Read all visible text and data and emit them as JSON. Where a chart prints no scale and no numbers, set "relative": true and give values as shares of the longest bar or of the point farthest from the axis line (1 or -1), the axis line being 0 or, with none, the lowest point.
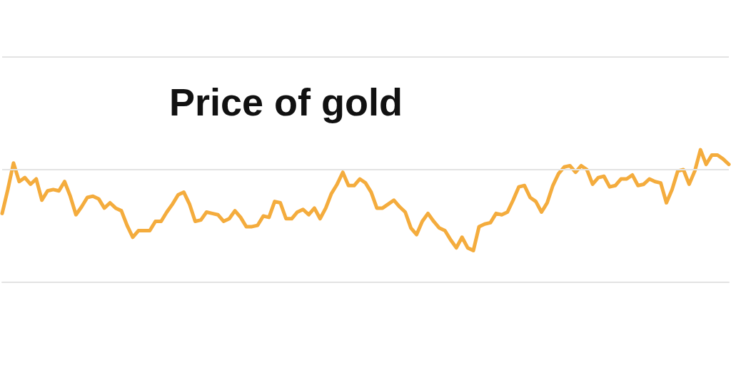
{
  "chart_data": {
    "type": "line",
    "title": "Price of gold",
    "relative": true,
    "color": "#f4ac3d",
    "ref_lines": [
      {
        "axis": "y",
        "value": 1.7,
        "color": "#e3e3e3"
      },
      {
        "axis": "y",
        "value": 0.85,
        "color": "#e3e3e3"
      }
    ],
    "categories": [
      null,
      null,
      null,
      null,
      null,
      null,
      null,
      null,
      null,
      null,
      null,
      null,
      null,
      null,
      null,
      null,
      null,
      null,
      null,
      null,
      null,
      null,
      null,
      null,
      null,
      null,
      null,
      null,
      null,
      null,
      null,
      null,
      null,
      null,
      null,
      null,
      null,
      null,
      null,
      null,
      null,
      null,
      null,
      null,
      null,
      null,
      null,
      null,
      null,
      null,
      null,
      null,
      null,
      null,
      null,
      null,
      null,
      null,
      null,
      null,
      null,
      null,
      null,
      null,
      null,
      null,
      null,
      null,
      null,
      null,
      null,
      null,
      null,
      null,
      null,
      null,
      null,
      null,
      null,
      null,
      null,
      null,
      null,
      null,
      null,
      null,
      null,
      null,
      null,
      null,
      null,
      null,
      null,
      null,
      null,
      null,
      null,
      null,
      null,
      null,
      null,
      null,
      null,
      null,
      null,
      null,
      null,
      null,
      null,
      null,
      null,
      null,
      null,
      null,
      null,
      null,
      null,
      null,
      null,
      null,
      null,
      null,
      null,
      null,
      null,
      null,
      null,
      null,
      null
    ],
    "values": [
      0.52,
      0.7,
      0.9,
      0.76,
      0.79,
      0.74,
      0.78,
      0.62,
      0.69,
      0.7,
      0.69,
      0.76,
      0.65,
      0.51,
      0.57,
      0.64,
      0.65,
      0.63,
      0.56,
      0.6,
      0.56,
      0.54,
      0.43,
      0.34,
      0.39,
      0.39,
      0.39,
      0.46,
      0.46,
      0.53,
      0.59,
      0.66,
      0.68,
      0.59,
      0.46,
      0.47,
      0.53,
      0.52,
      0.51,
      0.46,
      0.48,
      0.54,
      0.49,
      0.42,
      0.42,
      0.43,
      0.5,
      0.49,
      0.61,
      0.6,
      0.48,
      0.48,
      0.53,
      0.55,
      0.51,
      0.56,
      0.48,
      0.56,
      0.67,
      0.74,
      0.83,
      0.73,
      0.73,
      0.78,
      0.75,
      0.68,
      0.56,
      0.56,
      0.59,
      0.62,
      0.57,
      0.53,
      0.41,
      0.36,
      0.46,
      0.52,
      0.46,
      0.41,
      0.39,
      0.32,
      0.26,
      0.34,
      0.26,
      0.24,
      0.42,
      0.44,
      0.45,
      0.52,
      0.51,
      0.53,
      0.62,
      0.72,
      0.73,
      0.64,
      0.61,
      0.53,
      0.6,
      0.73,
      0.82,
      0.87,
      0.88,
      0.83,
      0.88,
      0.85,
      0.74,
      0.79,
      0.8,
      0.72,
      0.73,
      0.78,
      0.78,
      0.81,
      0.73,
      0.74,
      0.78,
      0.76,
      0.75,
      0.6,
      0.7,
      0.84,
      0.85,
      0.74,
      0.84,
      1,
      0.89,
      0.96,
      0.96,
      0.93,
      0.89
    ]
  }
}
